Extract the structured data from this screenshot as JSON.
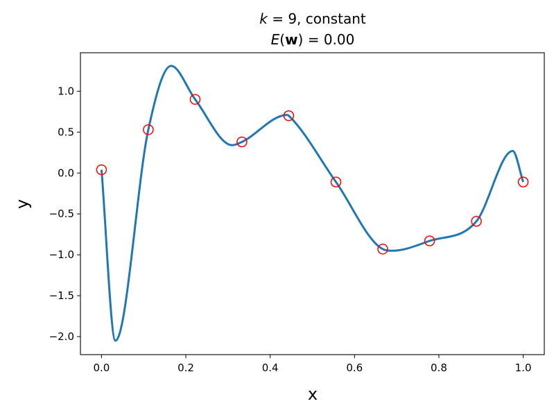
{
  "chart_data": {
    "type": "line",
    "title": {
      "line1": {
        "k_symbol": "k",
        "rest": " = 9, constant"
      },
      "line2": {
        "E_symbol": "E",
        "open": "(",
        "w_symbol": "w",
        "close": ")",
        "rest": " = 0.00"
      }
    },
    "xlabel": "x",
    "ylabel": "y",
    "xlim": [
      -0.05,
      1.05
    ],
    "ylim": [
      -2.22,
      1.47
    ],
    "xticks": [
      0.0,
      0.2,
      0.4,
      0.6,
      0.8,
      1.0
    ],
    "xtick_labels": [
      "0.0",
      "0.2",
      "0.4",
      "0.6",
      "0.8",
      "1.0"
    ],
    "yticks": [
      -2.0,
      -1.5,
      -1.0,
      -0.5,
      0.0,
      0.5,
      1.0
    ],
    "ytick_labels": [
      "−2.0",
      "−1.5",
      "−1.0",
      "−0.5",
      "0.0",
      "0.5",
      "1.0"
    ],
    "grid": false,
    "series": [
      {
        "kind": "curve",
        "color": "#1f77b4",
        "x": [
          0.0,
          0.111,
          0.222,
          0.333,
          0.444,
          0.556,
          0.667,
          0.778,
          0.889,
          1.0
        ],
        "y": [
          0.04,
          0.53,
          0.9,
          0.38,
          0.7,
          -0.11,
          -0.93,
          -0.83,
          -0.59,
          -0.11
        ],
        "extrema": [
          {
            "x": 0.033,
            "y": -2.05
          },
          {
            "x": 0.165,
            "y": 1.31
          },
          {
            "x": 0.31,
            "y": 0.34
          },
          {
            "x": 0.44,
            "y": 0.71
          },
          {
            "x": 0.69,
            "y": -0.95
          },
          {
            "x": 0.975,
            "y": 0.27
          }
        ]
      },
      {
        "kind": "points",
        "marker": "open-circle",
        "color": "#ff0000",
        "x": [
          0.0,
          0.111,
          0.222,
          0.333,
          0.444,
          0.556,
          0.667,
          0.778,
          0.889,
          1.0
        ],
        "y": [
          0.04,
          0.53,
          0.9,
          0.38,
          0.7,
          -0.11,
          -0.93,
          -0.83,
          -0.59,
          -0.11
        ]
      }
    ]
  }
}
